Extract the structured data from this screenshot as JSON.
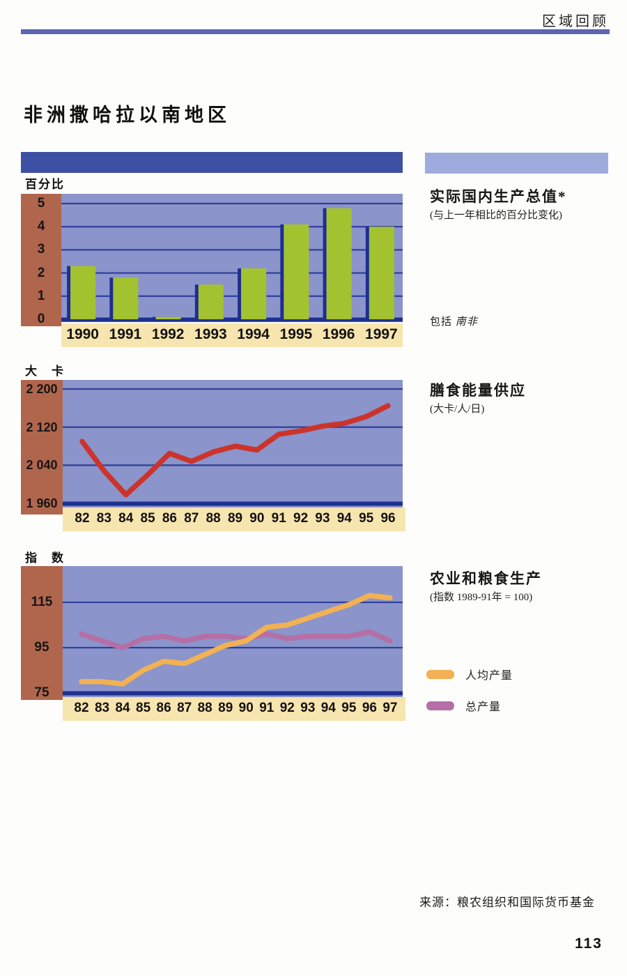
{
  "page": {
    "header": "区域回顾",
    "title": "非洲撒哈拉以南地区",
    "source": "来源：粮农组织和国际货币基金",
    "page_number": "113"
  },
  "colors": {
    "rule_blue": "#5b67b2",
    "band_dark": "#3d50a4",
    "band_light": "#9fabdc",
    "plot_bg": "#8b94cb",
    "grid_navy": "#2f3f9a",
    "axis_navy": "#1d2f8f",
    "strip_brown": "#b0664d",
    "band_cream": "#f6e5af",
    "bar_green": "#a3c230",
    "line_red": "#cc342b",
    "line_orange": "#f2b152",
    "line_purple": "#b470a6"
  },
  "chart_data": [
    {
      "id": "real-gdp",
      "type": "bar",
      "unit_label": "百分比",
      "title": "实际国内生产总值*",
      "subtitle": "(与上一年相比的百分比变化)",
      "note_prefix": "包括",
      "note_region": "南非",
      "categories": [
        "1990",
        "1991",
        "1992",
        "1993",
        "1994",
        "1995",
        "1996",
        "1997"
      ],
      "values": [
        2.3,
        1.8,
        0.1,
        1.5,
        2.2,
        4.1,
        4.8,
        4.0
      ],
      "ylim": [
        0,
        5
      ],
      "y_ticks": [
        5,
        4,
        3,
        2,
        1,
        0
      ],
      "y_tick_labels": [
        "5",
        "4",
        "3",
        "2",
        "1",
        "0"
      ],
      "grid": true,
      "bar_color": "#a3c230"
    },
    {
      "id": "dietary-energy-supply",
      "type": "line",
      "unit_label": "大　卡",
      "title": "膳食能量供应",
      "subtitle": "(大卡/人/日)",
      "categories": [
        "82",
        "83",
        "84",
        "85",
        "86",
        "87",
        "88",
        "89",
        "90",
        "91",
        "92",
        "93",
        "94",
        "95",
        "96"
      ],
      "series": [
        {
          "name": "膳食能量供应",
          "color": "#cc342b",
          "values": [
            2090,
            2028,
            1978,
            2020,
            2065,
            2048,
            2068,
            2080,
            2072,
            2105,
            2112,
            2122,
            2128,
            2142,
            2165
          ]
        }
      ],
      "ylim": [
        1960,
        2200
      ],
      "y_ticks": [
        2200,
        2120,
        2040,
        1960
      ],
      "y_tick_labels": [
        "2 200",
        "2 120",
        "2 040",
        "1 960"
      ],
      "grid": true
    },
    {
      "id": "agriculture-food-production",
      "type": "line",
      "unit_label": "指　数",
      "title": "农业和粮食生产",
      "subtitle": "(指数 1989-91年 = 100)",
      "categories": [
        "82",
        "83",
        "84",
        "85",
        "86",
        "87",
        "88",
        "89",
        "90",
        "91",
        "92",
        "93",
        "94",
        "95",
        "96",
        "97"
      ],
      "series": [
        {
          "name": "人均产量",
          "color": "#f2b152",
          "values": [
            80,
            80,
            79,
            85,
            89,
            88,
            92,
            96,
            98,
            104,
            105,
            108,
            111,
            114,
            118,
            117
          ]
        },
        {
          "name": "总产量",
          "color": "#b470a6",
          "values": [
            101,
            98,
            95,
            99,
            100,
            98,
            100,
            100,
            99,
            101,
            99,
            100,
            100,
            100,
            102,
            98
          ]
        }
      ],
      "legend": [
        {
          "label": "人均产量",
          "color": "#f2b152"
        },
        {
          "label": "总产量",
          "color": "#b470a6"
        }
      ],
      "ylim": [
        75,
        115
      ],
      "y_ticks": [
        115,
        95,
        75
      ],
      "y_tick_labels": [
        "115",
        "95",
        "75"
      ],
      "grid": true
    }
  ]
}
